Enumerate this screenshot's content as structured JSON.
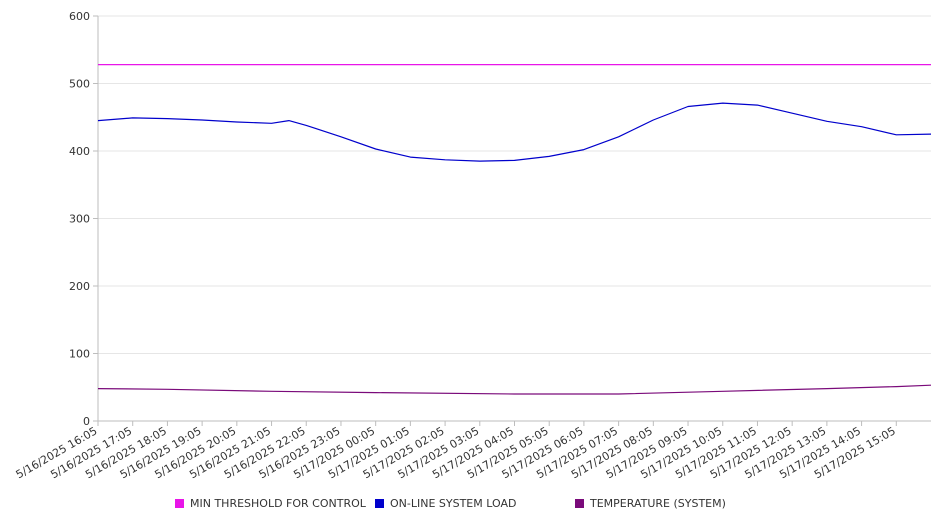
{
  "chart_data": {
    "type": "line",
    "title": "",
    "xlabel": "",
    "ylabel": "",
    "ylim": [
      0,
      600
    ],
    "yticks": [
      0,
      100,
      200,
      300,
      400,
      500,
      600
    ],
    "x_range": [
      "5/16/2025 16:05",
      "5/17/2025 16:05"
    ],
    "x_tick_labels": [
      "5/16/2025 16:05",
      "5/16/2025 17:05",
      "5/16/2025 18:05",
      "5/16/2025 19:05",
      "5/16/2025 20:05",
      "5/16/2025 21:05",
      "5/16/2025 22:05",
      "5/16/2025 23:05",
      "5/17/2025 00:05",
      "5/17/2025 01:05",
      "5/17/2025 02:05",
      "5/17/2025 03:05",
      "5/17/2025 04:05",
      "5/17/2025 05:05",
      "5/17/2025 06:05",
      "5/17/2025 07:05",
      "5/17/2025 08:05",
      "5/17/2025 09:05",
      "5/17/2025 10:05",
      "5/17/2025 11:05",
      "5/17/2025 12:05",
      "5/17/2025 13:05",
      "5/17/2025 14:05",
      "5/17/2025 15:05"
    ],
    "grid": true,
    "legend_position": "bottom",
    "series": [
      {
        "name": "MIN THRESHOLD FOR CONTROL",
        "color": "#e815e8",
        "x": [
          "5/16/2025 16:05",
          "5/17/2025 16:05"
        ],
        "y": [
          528,
          528
        ]
      },
      {
        "name": "ON-LINE SYSTEM LOAD",
        "color": "#0000cc",
        "x": [
          "5/16/2025 16:05",
          "5/16/2025 17:05",
          "5/16/2025 18:05",
          "5/16/2025 19:05",
          "5/16/2025 20:05",
          "5/16/2025 21:05",
          "5/16/2025 21:35",
          "5/16/2025 22:05",
          "5/16/2025 23:05",
          "5/17/2025 00:05",
          "5/17/2025 01:05",
          "5/17/2025 02:05",
          "5/17/2025 03:05",
          "5/17/2025 04:05",
          "5/17/2025 05:05",
          "5/17/2025 06:05",
          "5/17/2025 07:05",
          "5/17/2025 08:05",
          "5/17/2025 09:05",
          "5/17/2025 10:05",
          "5/17/2025 11:05",
          "5/17/2025 12:05",
          "5/17/2025 13:05",
          "5/17/2025 14:05",
          "5/17/2025 15:05",
          "5/17/2025 16:05"
        ],
        "y": [
          445,
          449,
          448,
          446,
          443,
          441,
          445,
          438,
          421,
          403,
          391,
          387,
          385,
          386,
          392,
          402,
          421,
          446,
          466,
          471,
          468,
          456,
          444,
          436,
          424,
          425
        ]
      },
      {
        "name": "TEMPERATURE (SYSTEM)",
        "color": "#7a0a7a",
        "x": [
          "5/16/2025 16:05",
          "5/16/2025 18:05",
          "5/16/2025 21:05",
          "5/17/2025 00:05",
          "5/17/2025 04:05",
          "5/17/2025 07:05",
          "5/17/2025 10:05",
          "5/17/2025 13:05",
          "5/17/2025 15:05",
          "5/17/2025 16:05"
        ],
        "y": [
          48,
          47,
          44,
          42,
          40,
          40,
          44,
          48,
          51,
          53
        ]
      }
    ]
  }
}
